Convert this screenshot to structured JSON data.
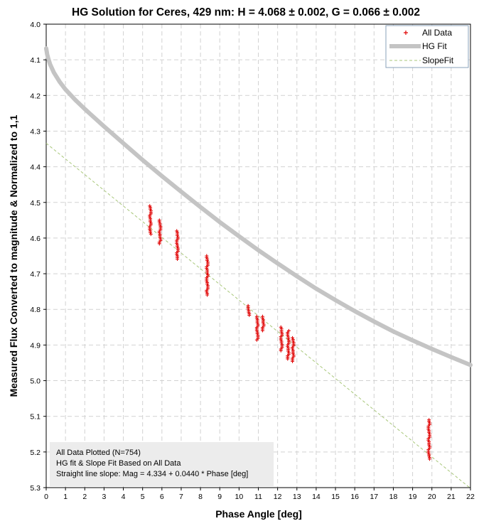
{
  "chart_data": {
    "type": "scatter",
    "title": "HG Solution for Ceres, 429 nm:  H = 4.068 ± 0.002, G = 0.066 ± 0.002",
    "xlabel": "Phase Angle [deg]",
    "ylabel": "Measured Flux Converted to magnitude & Normalized to 1,1",
    "xlim": [
      0,
      22
    ],
    "ylim": [
      4.0,
      5.3
    ],
    "y_inverted": true,
    "grid": true,
    "x_ticks": [
      "0",
      "1",
      "2",
      "3",
      "4",
      "5",
      "6",
      "7",
      "8",
      "9",
      "10",
      "11",
      "12",
      "13",
      "14",
      "15",
      "16",
      "17",
      "18",
      "19",
      "20",
      "21",
      "22"
    ],
    "y_ticks": [
      "4.0",
      "4.1",
      "4.2",
      "4.3",
      "4.4",
      "4.5",
      "4.6",
      "4.7",
      "4.8",
      "4.9",
      "5.0",
      "5.1",
      "5.2",
      "5.3"
    ],
    "legend": {
      "position": "top-right",
      "entries": [
        {
          "label": "All Data",
          "marker": "plus",
          "color": "#e00000"
        },
        {
          "label": "HG Fit",
          "marker": "thick-line",
          "color": "#c4c4c4"
        },
        {
          "label": "SlopeFit",
          "marker": "dashed-line",
          "color": "#a8c77a"
        }
      ]
    },
    "series": [
      {
        "name": "All Data",
        "color": "#e00000",
        "clusters": [
          {
            "x": 5.4,
            "y_min": 4.51,
            "y_max": 4.59
          },
          {
            "x": 5.9,
            "y_min": 4.55,
            "y_max": 4.62
          },
          {
            "x": 6.8,
            "y_min": 4.58,
            "y_max": 4.66
          },
          {
            "x": 8.35,
            "y_min": 4.65,
            "y_max": 4.76
          },
          {
            "x": 10.5,
            "y_min": 4.79,
            "y_max": 4.82
          },
          {
            "x": 10.95,
            "y_min": 4.82,
            "y_max": 4.89
          },
          {
            "x": 11.25,
            "y_min": 4.82,
            "y_max": 4.86
          },
          {
            "x": 12.2,
            "y_min": 4.85,
            "y_max": 4.92
          },
          {
            "x": 12.55,
            "y_min": 4.86,
            "y_max": 4.94
          },
          {
            "x": 12.8,
            "y_min": 4.88,
            "y_max": 4.95
          },
          {
            "x": 19.85,
            "y_min": 5.11,
            "y_max": 5.22
          }
        ]
      },
      {
        "name": "HG Fit",
        "color": "#c4c4c4",
        "x": [
          0,
          0.05,
          0.1,
          0.2,
          0.4,
          0.7,
          1,
          1.5,
          2,
          3,
          4,
          5,
          6,
          7,
          8,
          9,
          10,
          11,
          12,
          13,
          14,
          15,
          16,
          17,
          18,
          19,
          20,
          21,
          22
        ],
        "y": [
          4.068,
          4.085,
          4.095,
          4.112,
          4.136,
          4.162,
          4.183,
          4.212,
          4.238,
          4.287,
          4.334,
          4.381,
          4.426,
          4.47,
          4.513,
          4.555,
          4.595,
          4.634,
          4.671,
          4.707,
          4.742,
          4.774,
          4.805,
          4.834,
          4.862,
          4.887,
          4.911,
          4.934,
          4.956
        ]
      },
      {
        "name": "SlopeFit",
        "color": "#a8c77a",
        "x": [
          0,
          22
        ],
        "y": [
          4.334,
          5.302
        ]
      }
    ],
    "annotation": {
      "lines": [
        "All Data Plotted (N=754)",
        "HG fit & Slope Fit Based on All Data",
        "Straight line slope:  Mag = 4.334 + 0.0440 * Phase [deg]"
      ]
    }
  }
}
